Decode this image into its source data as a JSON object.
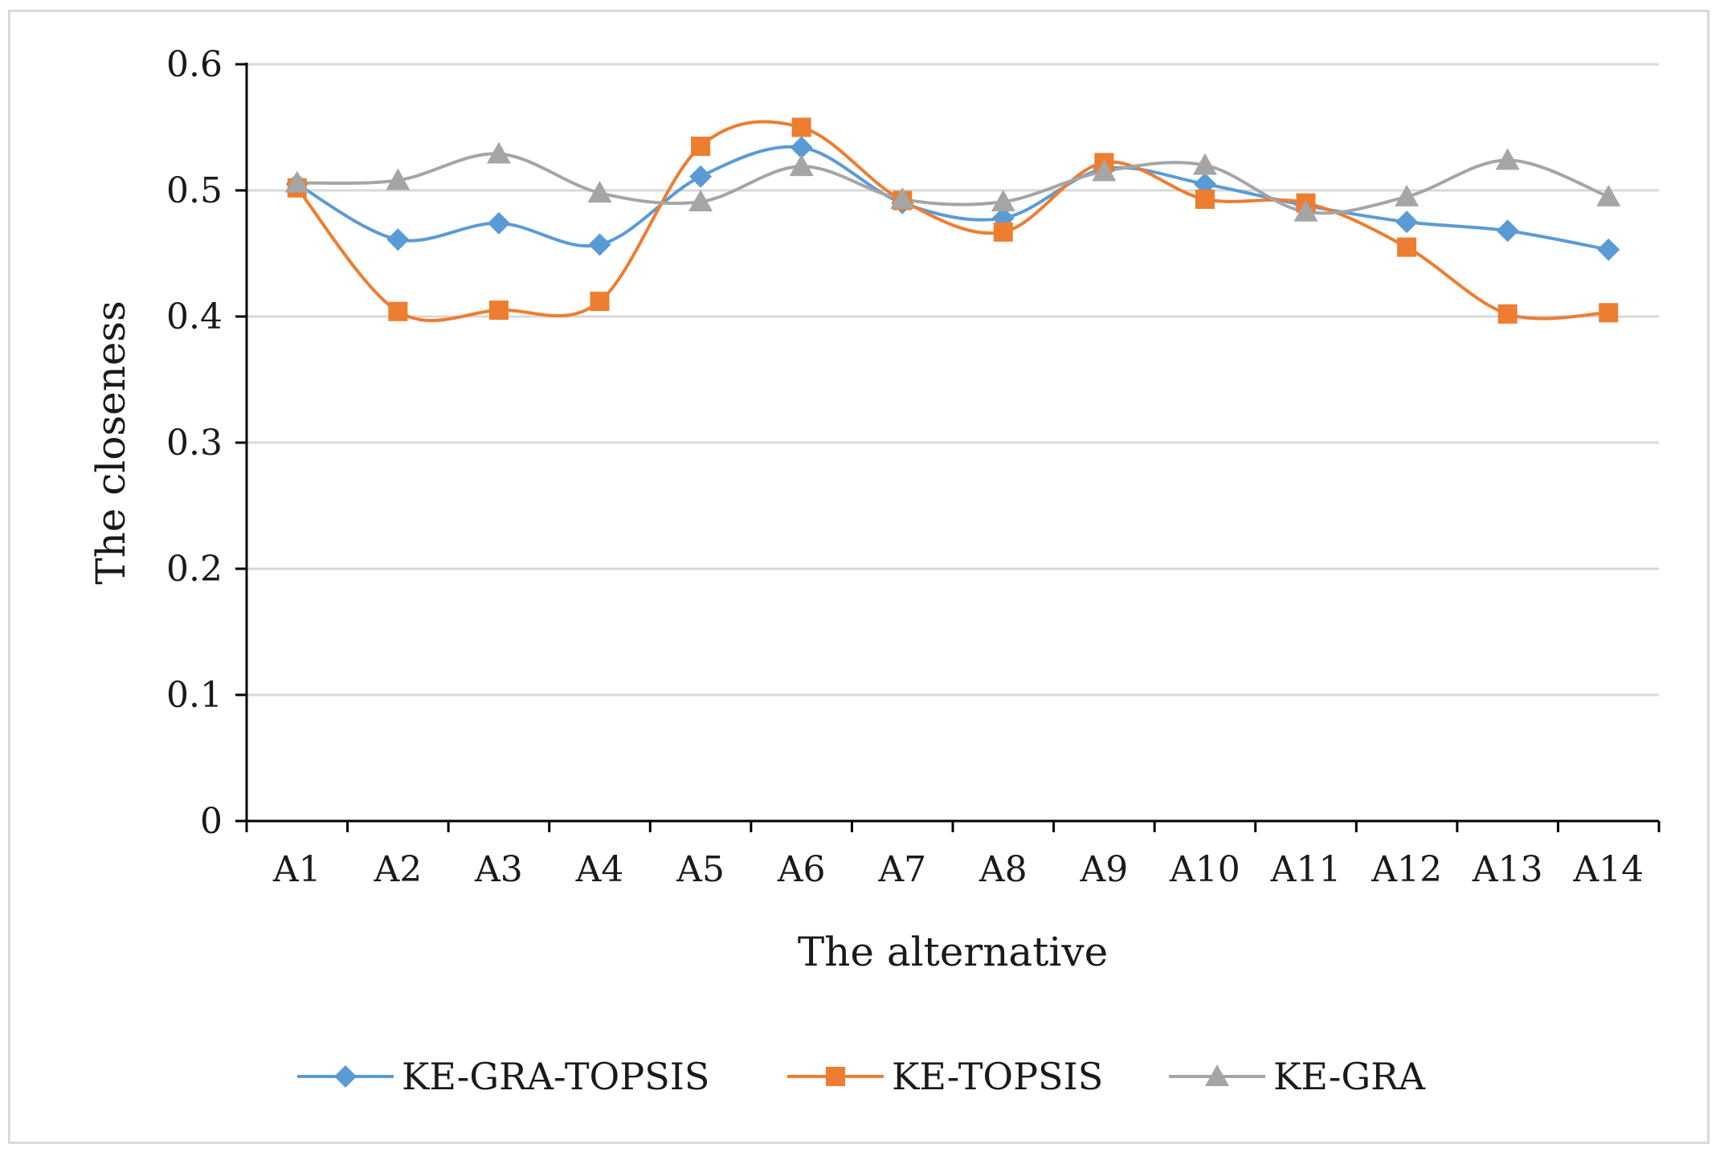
{
  "chart_data": {
    "type": "line",
    "smooth": true,
    "xlabel": "The alternative",
    "ylabel": "The closeness",
    "ylim": [
      0,
      0.6
    ],
    "yticks": [
      0,
      0.1,
      0.2,
      0.3,
      0.4,
      0.5,
      0.6
    ],
    "ytick_labels": [
      "0",
      "0.1",
      "0.2",
      "0.3",
      "0.4",
      "0.5",
      "0.6"
    ],
    "grid": "horizontal",
    "legend_position": "bottom",
    "categories": [
      "A1",
      "A2",
      "A3",
      "A4",
      "A5",
      "A6",
      "A7",
      "A8",
      "A9",
      "A10",
      "A11",
      "A12",
      "A13",
      "A14"
    ],
    "series": [
      {
        "name": "KE-GRA-TOPSIS",
        "color": "#5b9bd5",
        "marker": "diamond",
        "values": [
          0.505,
          0.461,
          0.474,
          0.457,
          0.511,
          0.534,
          0.49,
          0.478,
          0.517,
          0.505,
          0.488,
          0.475,
          0.468,
          0.453
        ]
      },
      {
        "name": "KE-TOPSIS",
        "color": "#ed7d31",
        "marker": "square",
        "values": [
          0.502,
          0.404,
          0.405,
          0.412,
          0.535,
          0.55,
          0.492,
          0.467,
          0.522,
          0.493,
          0.49,
          0.455,
          0.402,
          0.403
        ]
      },
      {
        "name": "KE-GRA",
        "color": "#a5a5a5",
        "marker": "triangle",
        "values": [
          0.506,
          0.508,
          0.529,
          0.498,
          0.491,
          0.519,
          0.493,
          0.491,
          0.515,
          0.52,
          0.483,
          0.495,
          0.524,
          0.495
        ]
      }
    ]
  }
}
